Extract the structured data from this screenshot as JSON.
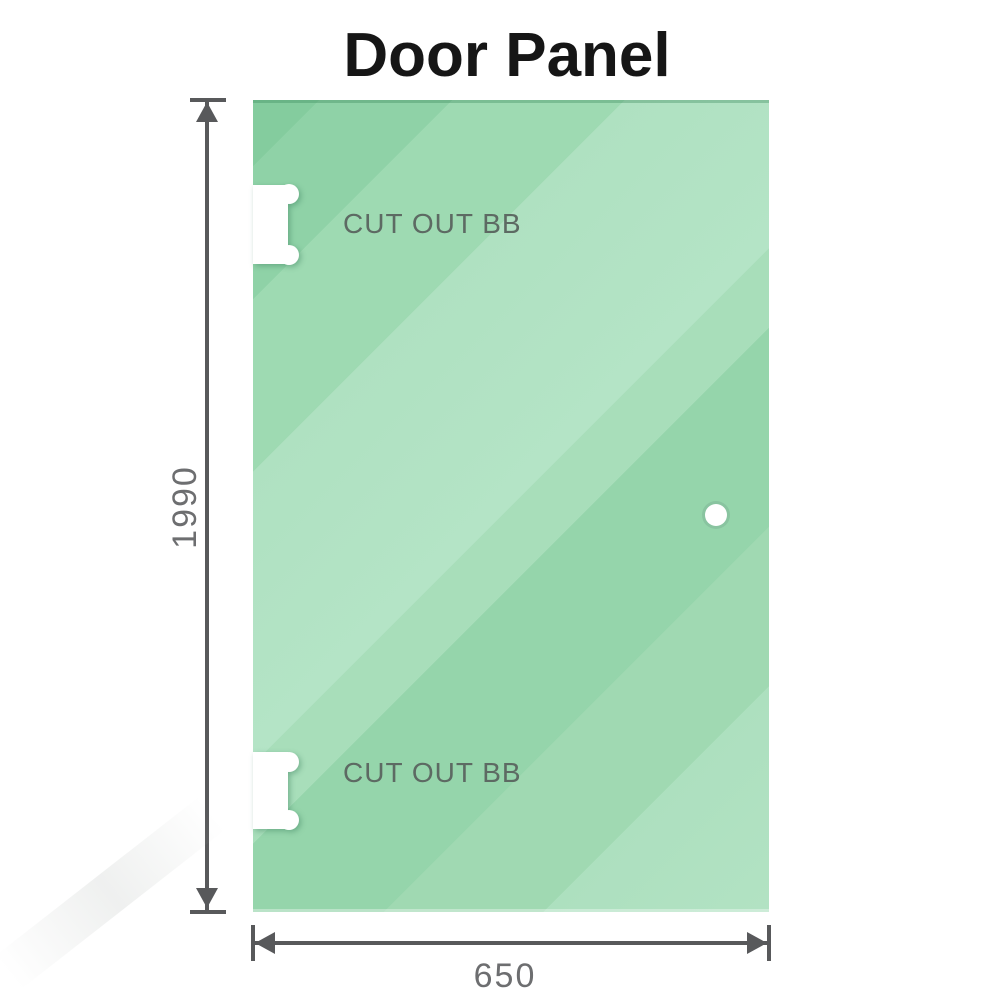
{
  "title": "Door Panel",
  "panel": {
    "cutouts": [
      {
        "position": "top",
        "label": "CUT OUT BB"
      },
      {
        "position": "bottom",
        "label": "CUT OUT BB"
      }
    ],
    "hole": {
      "shape": "circle",
      "side": "right"
    },
    "glass_colors": {
      "base": "#8fd2a7",
      "highlight": "#b4e4c6",
      "edge_shade": "#5fae83"
    }
  },
  "dimensions": {
    "height": {
      "value": "1990",
      "orientation": "vertical"
    },
    "width": {
      "value": "650",
      "orientation": "horizontal"
    },
    "line_color": "#58595b",
    "label_color": "#6d6e70"
  }
}
